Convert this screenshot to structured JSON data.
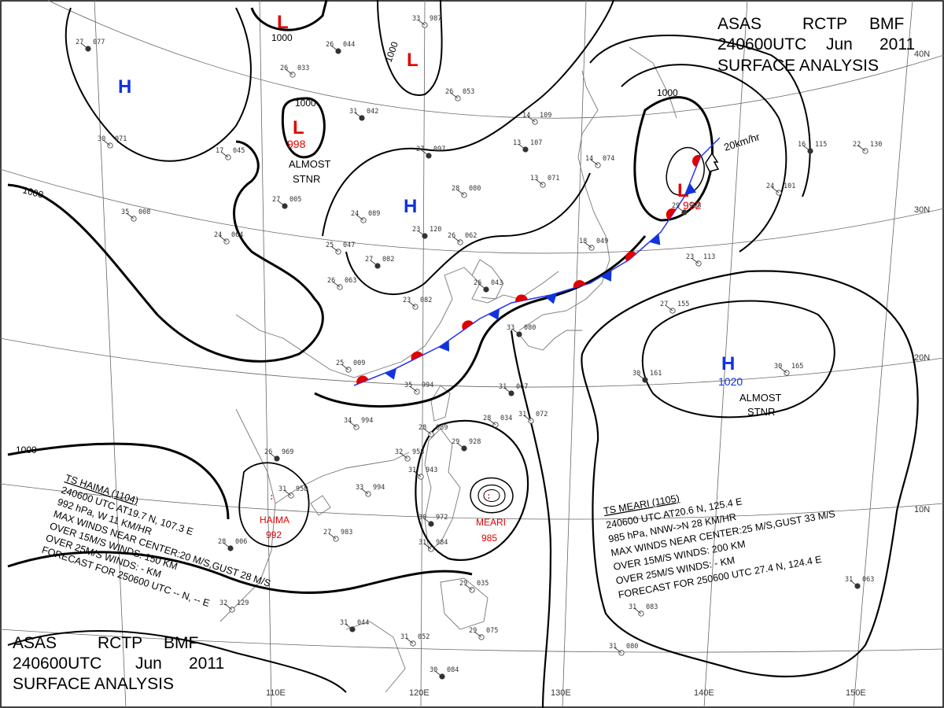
{
  "header": {
    "line1": [
      "ASAS",
      "RCTP",
      "BMF"
    ],
    "line2": [
      "240600UTC",
      "Jun",
      "2011"
    ],
    "line3": "SURFACE  ANALYSIS"
  },
  "grid": {
    "longitudes": [
      "110E",
      "120E",
      "130E",
      "140E",
      "150E"
    ],
    "latitudes": [
      "40N",
      "30N",
      "20N",
      "10N"
    ]
  },
  "isobar_labels": [
    "1000",
    "1000",
    "1000",
    "1000",
    "1000",
    "1000"
  ],
  "pressure_centers": {
    "lows": [
      {
        "letter": "L",
        "value": ""
      },
      {
        "letter": "L",
        "value": ""
      },
      {
        "letter": "L",
        "value": "998",
        "note": [
          "ALMOST",
          "STNR"
        ]
      },
      {
        "letter": "L",
        "value": "992"
      }
    ],
    "highs": [
      {
        "letter": "H",
        "value": ""
      },
      {
        "letter": "H",
        "value": ""
      },
      {
        "letter": "H",
        "value": "1020",
        "note": [
          "ALMOST",
          "STNR"
        ]
      }
    ]
  },
  "movement": {
    "speed": "20km/hr"
  },
  "typhoons": [
    {
      "name": "HAIMA",
      "pressure": "992",
      "info": [
        "TS  HAIMA  (1104)",
        "240600 UTC  AT19.7 N, 107.3 E",
        "992 hPa, W  11 KM/HR",
        "MAX WINDS NEAR CENTER:20 M/S,GUST 28 M/S",
        "OVER 15M/S WINDS: 150 KM",
        "OVER 25M/S WINDS: - KM",
        "FORECAST FOR 250600 UTC -- N, -- E"
      ]
    },
    {
      "name": "MEARI",
      "pressure": "985",
      "info": [
        "TS  MEARI  (1105)",
        "240600 UTC  AT20.6 N, 125.4 E",
        "985 hPa, NNW->N  28 KM/HR",
        "MAX WINDS NEAR CENTER:25 M/S,GUST 33 M/S",
        "OVER 15M/S WINDS: 200 KM",
        "OVER 25M/S WINDS: - KM",
        "FORECAST FOR 250600 UTC 27.4 N, 124.4 E"
      ]
    }
  ],
  "stations": [
    {
      "t": "27",
      "p": "077"
    },
    {
      "t": "26",
      "p": "033"
    },
    {
      "t": "33",
      "p": "987"
    },
    {
      "t": "26",
      "p": "044"
    },
    {
      "t": "30",
      "p": "071"
    },
    {
      "t": "17",
      "p": "045"
    },
    {
      "t": "31",
      "p": "042"
    },
    {
      "t": "26",
      "p": "053"
    },
    {
      "t": "14",
      "p": "109"
    },
    {
      "t": "13",
      "p": "107"
    },
    {
      "t": "13",
      "p": "071"
    },
    {
      "t": "14",
      "p": "074"
    },
    {
      "t": "27",
      "p": "097"
    },
    {
      "t": "28",
      "p": "080"
    },
    {
      "t": "24",
      "p": "089"
    },
    {
      "t": "27",
      "p": "005"
    },
    {
      "t": "35",
      "p": "008"
    },
    {
      "t": "24",
      "p": "064"
    },
    {
      "t": "23",
      "p": "120"
    },
    {
      "t": "26",
      "p": "062"
    },
    {
      "t": "25",
      "p": "047"
    },
    {
      "t": "27",
      "p": "082"
    },
    {
      "t": "26",
      "p": "063"
    },
    {
      "t": "18",
      "p": "049"
    },
    {
      "t": "26",
      "p": "043"
    },
    {
      "t": "23",
      "p": "082"
    },
    {
      "t": "23",
      "p": "113"
    },
    {
      "t": "16",
      "p": "115"
    },
    {
      "t": "22",
      "p": "130"
    },
    {
      "t": "24",
      "p": "101"
    },
    {
      "t": "29",
      "p": "998"
    },
    {
      "t": "27",
      "p": "155"
    },
    {
      "t": "30",
      "p": "165"
    },
    {
      "t": "30",
      "p": "161"
    },
    {
      "t": "25",
      "p": "009"
    },
    {
      "t": "35",
      "p": "994"
    },
    {
      "t": "31",
      "p": "067"
    },
    {
      "t": "28",
      "p": "034"
    },
    {
      "t": "31",
      "p": "072"
    },
    {
      "t": "33",
      "p": "080"
    },
    {
      "t": "34",
      "p": "994"
    },
    {
      "t": "28",
      "p": "989"
    },
    {
      "t": "29",
      "p": "928"
    },
    {
      "t": "32",
      "p": "958"
    },
    {
      "t": "31",
      "p": "943"
    },
    {
      "t": "26",
      "p": "969"
    },
    {
      "t": "31",
      "p": "958"
    },
    {
      "t": "33",
      "p": "994"
    },
    {
      "t": "30",
      "p": "972"
    },
    {
      "t": "31",
      "p": "984"
    },
    {
      "t": "27",
      "p": "983"
    },
    {
      "t": "28",
      "p": "006"
    },
    {
      "t": "29",
      "p": "035"
    },
    {
      "t": "32",
      "p": "129"
    },
    {
      "t": "31",
      "p": "044"
    },
    {
      "t": "31",
      "p": "052"
    },
    {
      "t": "29",
      "p": "075"
    },
    {
      "t": "30",
      "p": "084"
    },
    {
      "t": "31",
      "p": "083"
    },
    {
      "t": "31",
      "p": "080"
    },
    {
      "t": "31",
      "p": "063"
    }
  ]
}
